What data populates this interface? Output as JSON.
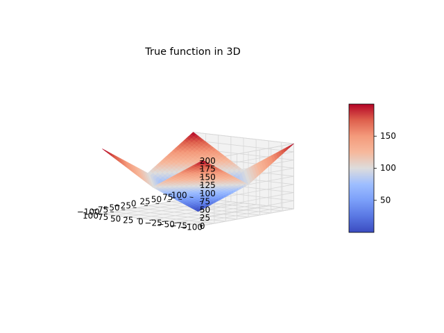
{
  "chart_data": {
    "type": "surface3d",
    "title": "True function in 3D",
    "function": "z = |x| + |y|",
    "x_range": [
      -100,
      100
    ],
    "y_range": [
      -100,
      100
    ],
    "z_range": [
      0,
      200
    ],
    "x_ticks": [
      -100,
      -75,
      -50,
      -25,
      0,
      25,
      50,
      75,
      100
    ],
    "y_ticks": [
      -100,
      -75,
      -50,
      -25,
      0,
      25,
      50,
      75,
      100
    ],
    "z_ticks": [
      0,
      25,
      50,
      75,
      100,
      125,
      150,
      175,
      200
    ],
    "x_tick_labels": [
      "−100",
      "−75",
      "−50",
      "−25",
      "0",
      "25",
      "50",
      "75",
      "100"
    ],
    "y_tick_labels": [
      "−100",
      "−75",
      "−50",
      "−25",
      "0",
      "25",
      "50",
      "75",
      "100"
    ],
    "z_tick_labels": [
      "0",
      "25",
      "50",
      "75",
      "100",
      "125",
      "150",
      "175",
      "200"
    ],
    "colormap": "coolwarm",
    "colorbar": {
      "range": [
        0,
        200
      ],
      "ticks": [
        50,
        100,
        150
      ],
      "tick_labels": [
        "50",
        "100",
        "150"
      ]
    },
    "grid": true,
    "sample_values": [
      {
        "x": -100,
        "y": -100,
        "z": 200
      },
      {
        "x": 100,
        "y": -100,
        "z": 200
      },
      {
        "x": -100,
        "y": 100,
        "z": 200
      },
      {
        "x": 100,
        "y": 100,
        "z": 200
      },
      {
        "x": 0,
        "y": 0,
        "z": 0
      },
      {
        "x": 0,
        "y": -100,
        "z": 100
      },
      {
        "x": 0,
        "y": 100,
        "z": 100
      },
      {
        "x": -100,
        "y": 0,
        "z": 100
      },
      {
        "x": 100,
        "y": 0,
        "z": 100
      }
    ]
  }
}
